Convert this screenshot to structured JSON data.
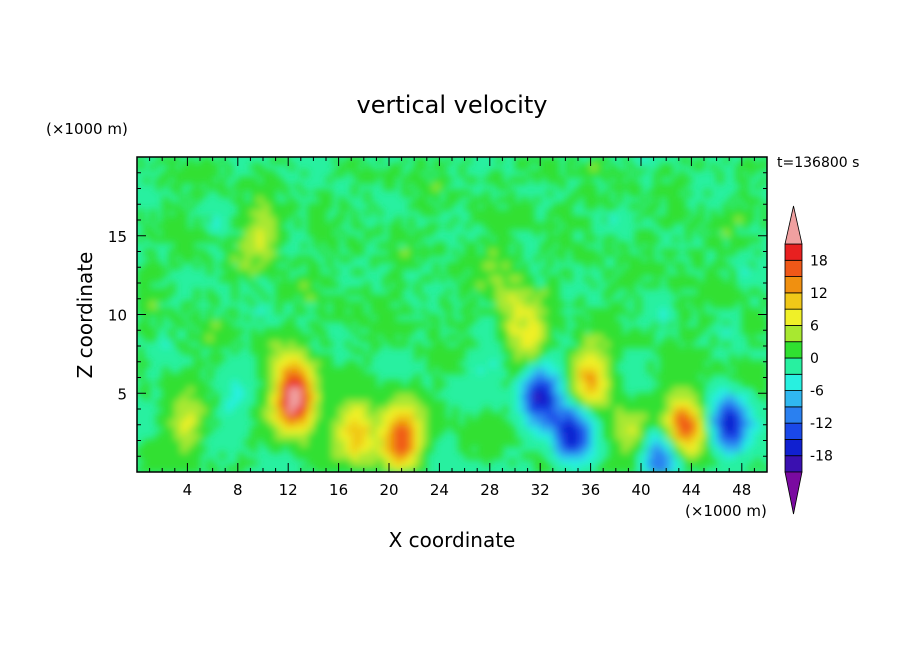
{
  "chart_data": {
    "type": "heatmap",
    "title": "vertical velocity",
    "xlabel": "X coordinate",
    "ylabel": "Z coordinate",
    "x_unit": "(×1000 m)",
    "y_unit": "(×1000 m)",
    "time_label": "t=136800 s",
    "xlim": [
      0,
      50
    ],
    "ylim": [
      0,
      20
    ],
    "x_ticks": [
      4,
      8,
      12,
      16,
      20,
      24,
      28,
      32,
      36,
      40,
      44,
      48
    ],
    "y_ticks": [
      5,
      10,
      15
    ],
    "colorbar": {
      "levels": [
        -21,
        -18,
        -15,
        -12,
        -9,
        -6,
        -3,
        0,
        3,
        6,
        9,
        12,
        15,
        18,
        21
      ],
      "tick_labels": [
        "18",
        "12",
        "6",
        "0",
        "-6",
        "-12",
        "-18"
      ],
      "colors": [
        "#7a0aa0",
        "#3a10b0",
        "#1020d0",
        "#1a48e8",
        "#2a80f0",
        "#30b8f0",
        "#28f0e0",
        "#28f0a0",
        "#30e030",
        "#a8e830",
        "#f0f028",
        "#f0c818",
        "#f09010",
        "#f05818",
        "#e82020",
        "#f0a0a0"
      ],
      "under_color": "#7a0aa0",
      "over_color": "#f0a0a0"
    },
    "features": [
      {
        "x": 12.5,
        "z": 4.5,
        "w": 0.4
      },
      {
        "x": 12.5,
        "z": 6.5,
        "w": 0.1
      },
      {
        "x": 17.5,
        "z": 2.5,
        "w": 0.2
      },
      {
        "x": 21,
        "z": 2.2,
        "w": 0.3
      },
      {
        "x": 4,
        "z": 3,
        "w": 0.1
      },
      {
        "x": 10,
        "z": 15,
        "w": 0.1
      },
      {
        "x": 30,
        "z": 10,
        "w": 0.1
      },
      {
        "x": 29,
        "z": 13,
        "w": 0.05
      },
      {
        "x": 31.5,
        "z": 8,
        "w": 0.1
      },
      {
        "x": 36,
        "z": 6,
        "w": 0.2
      },
      {
        "x": 43.5,
        "z": 3,
        "w": 0.3
      },
      {
        "x": 39,
        "z": 2.5,
        "w": 0.1
      },
      {
        "x": 32,
        "z": 5,
        "w": -0.3
      },
      {
        "x": 34.5,
        "z": 2.5,
        "w": -0.3
      },
      {
        "x": 47,
        "z": 3,
        "w": -0.3
      },
      {
        "x": 41.5,
        "z": 1,
        "w": -0.2
      },
      {
        "x": 28,
        "z": 7,
        "w": -0.05
      },
      {
        "x": 8,
        "z": 4,
        "w": -0.05
      }
    ]
  }
}
